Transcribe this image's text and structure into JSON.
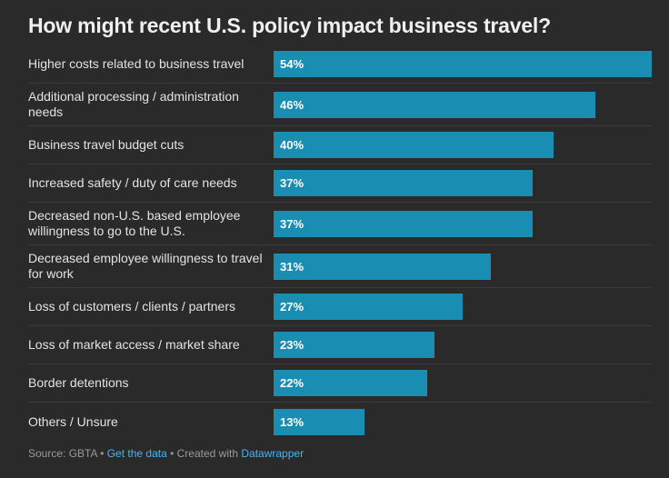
{
  "chart_data": {
    "type": "bar",
    "orientation": "horizontal",
    "title": "How might recent U.S. policy impact business travel?",
    "categories": [
      "Higher costs related to business travel",
      "Additional processing / administration needs",
      "Business travel budget cuts",
      "Increased safety / duty of care needs",
      "Decreased non-U.S. based employee willingness to go to the U.S.",
      "Decreased employee willingness to travel for work",
      "Loss of customers / clients / partners",
      "Loss of market access / market share",
      "Border detentions",
      "Others / Unsure"
    ],
    "values": [
      54,
      46,
      40,
      37,
      37,
      31,
      27,
      23,
      22,
      13
    ],
    "value_labels": [
      "54%",
      "46%",
      "40%",
      "37%",
      "37%",
      "31%",
      "27%",
      "23%",
      "22%",
      "13%"
    ],
    "color": "#1a8db3"
  },
  "footer": {
    "source": "Source: GBTA",
    "separator": "•",
    "get_data": "Get the data",
    "created": "Created with",
    "tool": "Datawrapper"
  }
}
